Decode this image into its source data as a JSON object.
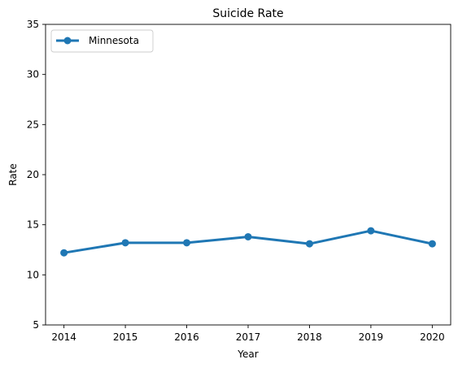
{
  "chart_data": {
    "type": "line",
    "title": "Suicide Rate",
    "xlabel": "Year",
    "ylabel": "Rate",
    "x": [
      2014,
      2015,
      2016,
      2017,
      2018,
      2019,
      2020
    ],
    "xticks": [
      "2014",
      "2015",
      "2016",
      "2017",
      "2018",
      "2019",
      "2020"
    ],
    "yticks": [
      "5",
      "10",
      "15",
      "20",
      "25",
      "30",
      "35"
    ],
    "ylim": [
      5,
      35
    ],
    "xlim": [
      2013.7,
      2020.3
    ],
    "grid": false,
    "legend_position": "top-left",
    "series": [
      {
        "name": "Minnesota",
        "values": [
          12.2,
          13.2,
          13.2,
          13.8,
          13.1,
          14.4,
          13.1
        ],
        "color": "#1f77b4",
        "marker": "circle"
      }
    ]
  }
}
